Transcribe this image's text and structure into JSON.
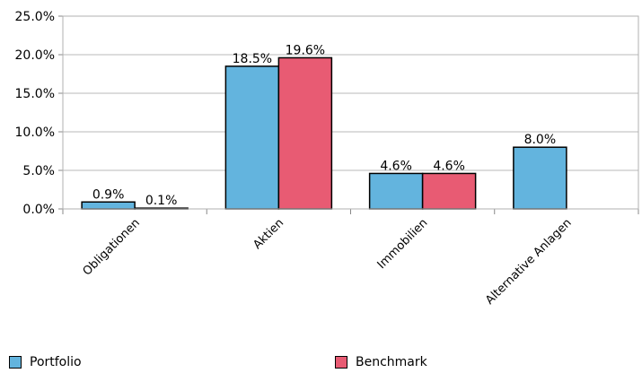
{
  "chart_data": {
    "type": "bar",
    "categories": [
      "Obligationen",
      "Aktien",
      "Immobilien",
      "Alternative Anlagen"
    ],
    "series": [
      {
        "name": "Portfolio",
        "color": "#63b4de",
        "values": [
          0.9,
          18.5,
          4.6,
          8.0
        ],
        "labels": [
          "0.9%",
          "18.5%",
          "4.6%",
          "8.0%"
        ]
      },
      {
        "name": "Benchmark",
        "color": "#e85b73",
        "values": [
          0.1,
          19.6,
          4.6,
          null
        ],
        "labels": [
          "0.1%",
          "19.6%",
          "4.6%",
          ""
        ]
      }
    ],
    "ylim": [
      0,
      25
    ],
    "yticks": [
      0,
      5,
      10,
      15,
      20,
      25
    ],
    "ytick_labels": [
      "0.0%",
      "5.0%",
      "10.0%",
      "15.0%",
      "20.0%",
      "25.0%"
    ],
    "grid": true,
    "legend_position": "bottom"
  }
}
